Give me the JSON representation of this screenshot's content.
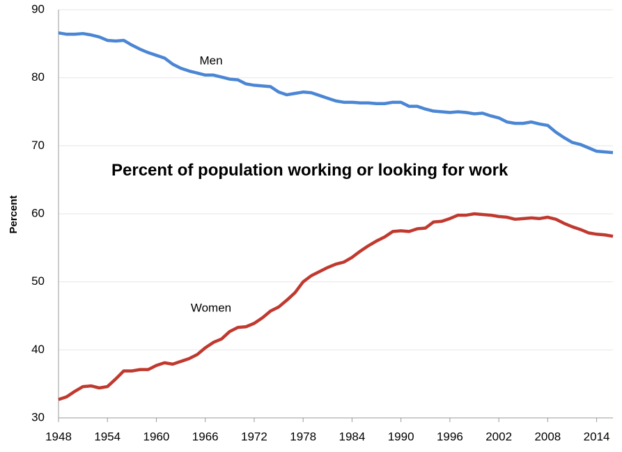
{
  "chart_data": {
    "type": "line",
    "title": "Percent of population working or looking for work",
    "y_label": "Percent",
    "x": [
      1948,
      1949,
      1950,
      1951,
      1952,
      1953,
      1954,
      1955,
      1956,
      1957,
      1958,
      1959,
      1960,
      1961,
      1962,
      1963,
      1964,
      1965,
      1966,
      1967,
      1968,
      1969,
      1970,
      1971,
      1972,
      1973,
      1974,
      1975,
      1976,
      1977,
      1978,
      1979,
      1980,
      1981,
      1982,
      1983,
      1984,
      1985,
      1986,
      1987,
      1988,
      1989,
      1990,
      1991,
      1992,
      1993,
      1994,
      1995,
      1996,
      1997,
      1998,
      1999,
      2000,
      2001,
      2002,
      2003,
      2004,
      2005,
      2006,
      2007,
      2008,
      2009,
      2010,
      2011,
      2012,
      2013,
      2014,
      2015,
      2016
    ],
    "series": [
      {
        "name": "Men",
        "color": "#4a86d4",
        "values": [
          86.6,
          86.4,
          86.4,
          86.5,
          86.3,
          86.0,
          85.5,
          85.4,
          85.5,
          84.8,
          84.2,
          83.7,
          83.3,
          82.9,
          82.0,
          81.4,
          81.0,
          80.7,
          80.4,
          80.4,
          80.1,
          79.8,
          79.7,
          79.1,
          78.9,
          78.8,
          78.7,
          77.9,
          77.5,
          77.7,
          77.9,
          77.8,
          77.4,
          77.0,
          76.6,
          76.4,
          76.4,
          76.3,
          76.3,
          76.2,
          76.2,
          76.4,
          76.4,
          75.8,
          75.8,
          75.4,
          75.1,
          75.0,
          74.9,
          75.0,
          74.9,
          74.7,
          74.8,
          74.4,
          74.1,
          73.5,
          73.3,
          73.3,
          73.5,
          73.2,
          73.0,
          72.0,
          71.2,
          70.5,
          70.2,
          69.7,
          69.2,
          69.1,
          69.0
        ]
      },
      {
        "name": "Women",
        "color": "#c0392f",
        "values": [
          32.7,
          33.1,
          33.9,
          34.6,
          34.7,
          34.4,
          34.6,
          35.7,
          36.9,
          36.9,
          37.1,
          37.1,
          37.7,
          38.1,
          37.9,
          38.3,
          38.7,
          39.3,
          40.3,
          41.1,
          41.6,
          42.7,
          43.3,
          43.4,
          43.9,
          44.7,
          45.7,
          46.3,
          47.3,
          48.4,
          50.0,
          50.9,
          51.5,
          52.1,
          52.6,
          52.9,
          53.6,
          54.5,
          55.3,
          56.0,
          56.6,
          57.4,
          57.5,
          57.4,
          57.8,
          57.9,
          58.8,
          58.9,
          59.3,
          59.8,
          59.8,
          60.0,
          59.9,
          59.8,
          59.6,
          59.5,
          59.2,
          59.3,
          59.4,
          59.3,
          59.5,
          59.2,
          58.6,
          58.1,
          57.7,
          57.2,
          57.0,
          56.9,
          56.7
        ]
      }
    ],
    "xlim": [
      1948,
      2016
    ],
    "xticks": [
      1948,
      1954,
      1960,
      1966,
      1972,
      1978,
      1984,
      1990,
      1996,
      2002,
      2008,
      2014
    ],
    "ylim": [
      30,
      90
    ],
    "yticks": [
      30,
      40,
      50,
      60,
      70,
      80,
      90
    ],
    "grid": true
  }
}
